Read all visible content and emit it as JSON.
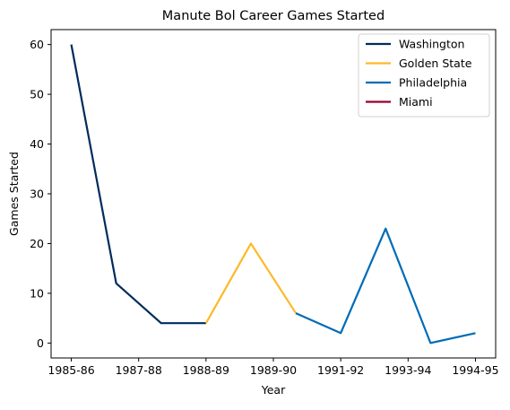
{
  "chart_data": {
    "type": "line",
    "title": "Manute Bol Career Games Started",
    "xlabel": "Year",
    "ylabel": "Games Started",
    "x_tick_labels": [
      "1985-86",
      "1987-88",
      "1988-89",
      "1989-90",
      "1991-92",
      "1993-94",
      "1994-95"
    ],
    "y_ticks": [
      0,
      10,
      20,
      30,
      40,
      50,
      60
    ],
    "x_range": [
      -0.45,
      9.45
    ],
    "ylim": [
      -3,
      63
    ],
    "grid": false,
    "legend_position": "top-right",
    "series": [
      {
        "name": "Washington",
        "color": "#002b5c",
        "points": [
          {
            "x": 0,
            "y": 60
          },
          {
            "x": 1,
            "y": 12
          },
          {
            "x": 2,
            "y": 4
          },
          {
            "x": 3,
            "y": 4
          }
        ]
      },
      {
        "name": "Golden State",
        "color": "#fdb927",
        "points": [
          {
            "x": 3,
            "y": 4
          },
          {
            "x": 4,
            "y": 20
          },
          {
            "x": 5,
            "y": 6
          }
        ]
      },
      {
        "name": "Philadelphia",
        "color": "#006bb6",
        "points": [
          {
            "x": 5,
            "y": 6
          },
          {
            "x": 6,
            "y": 2
          },
          {
            "x": 7,
            "y": 23
          },
          {
            "x": 8,
            "y": 0
          },
          {
            "x": 9,
            "y": 2
          }
        ]
      },
      {
        "name": "Miami",
        "color": "#98002e",
        "points": []
      }
    ]
  }
}
